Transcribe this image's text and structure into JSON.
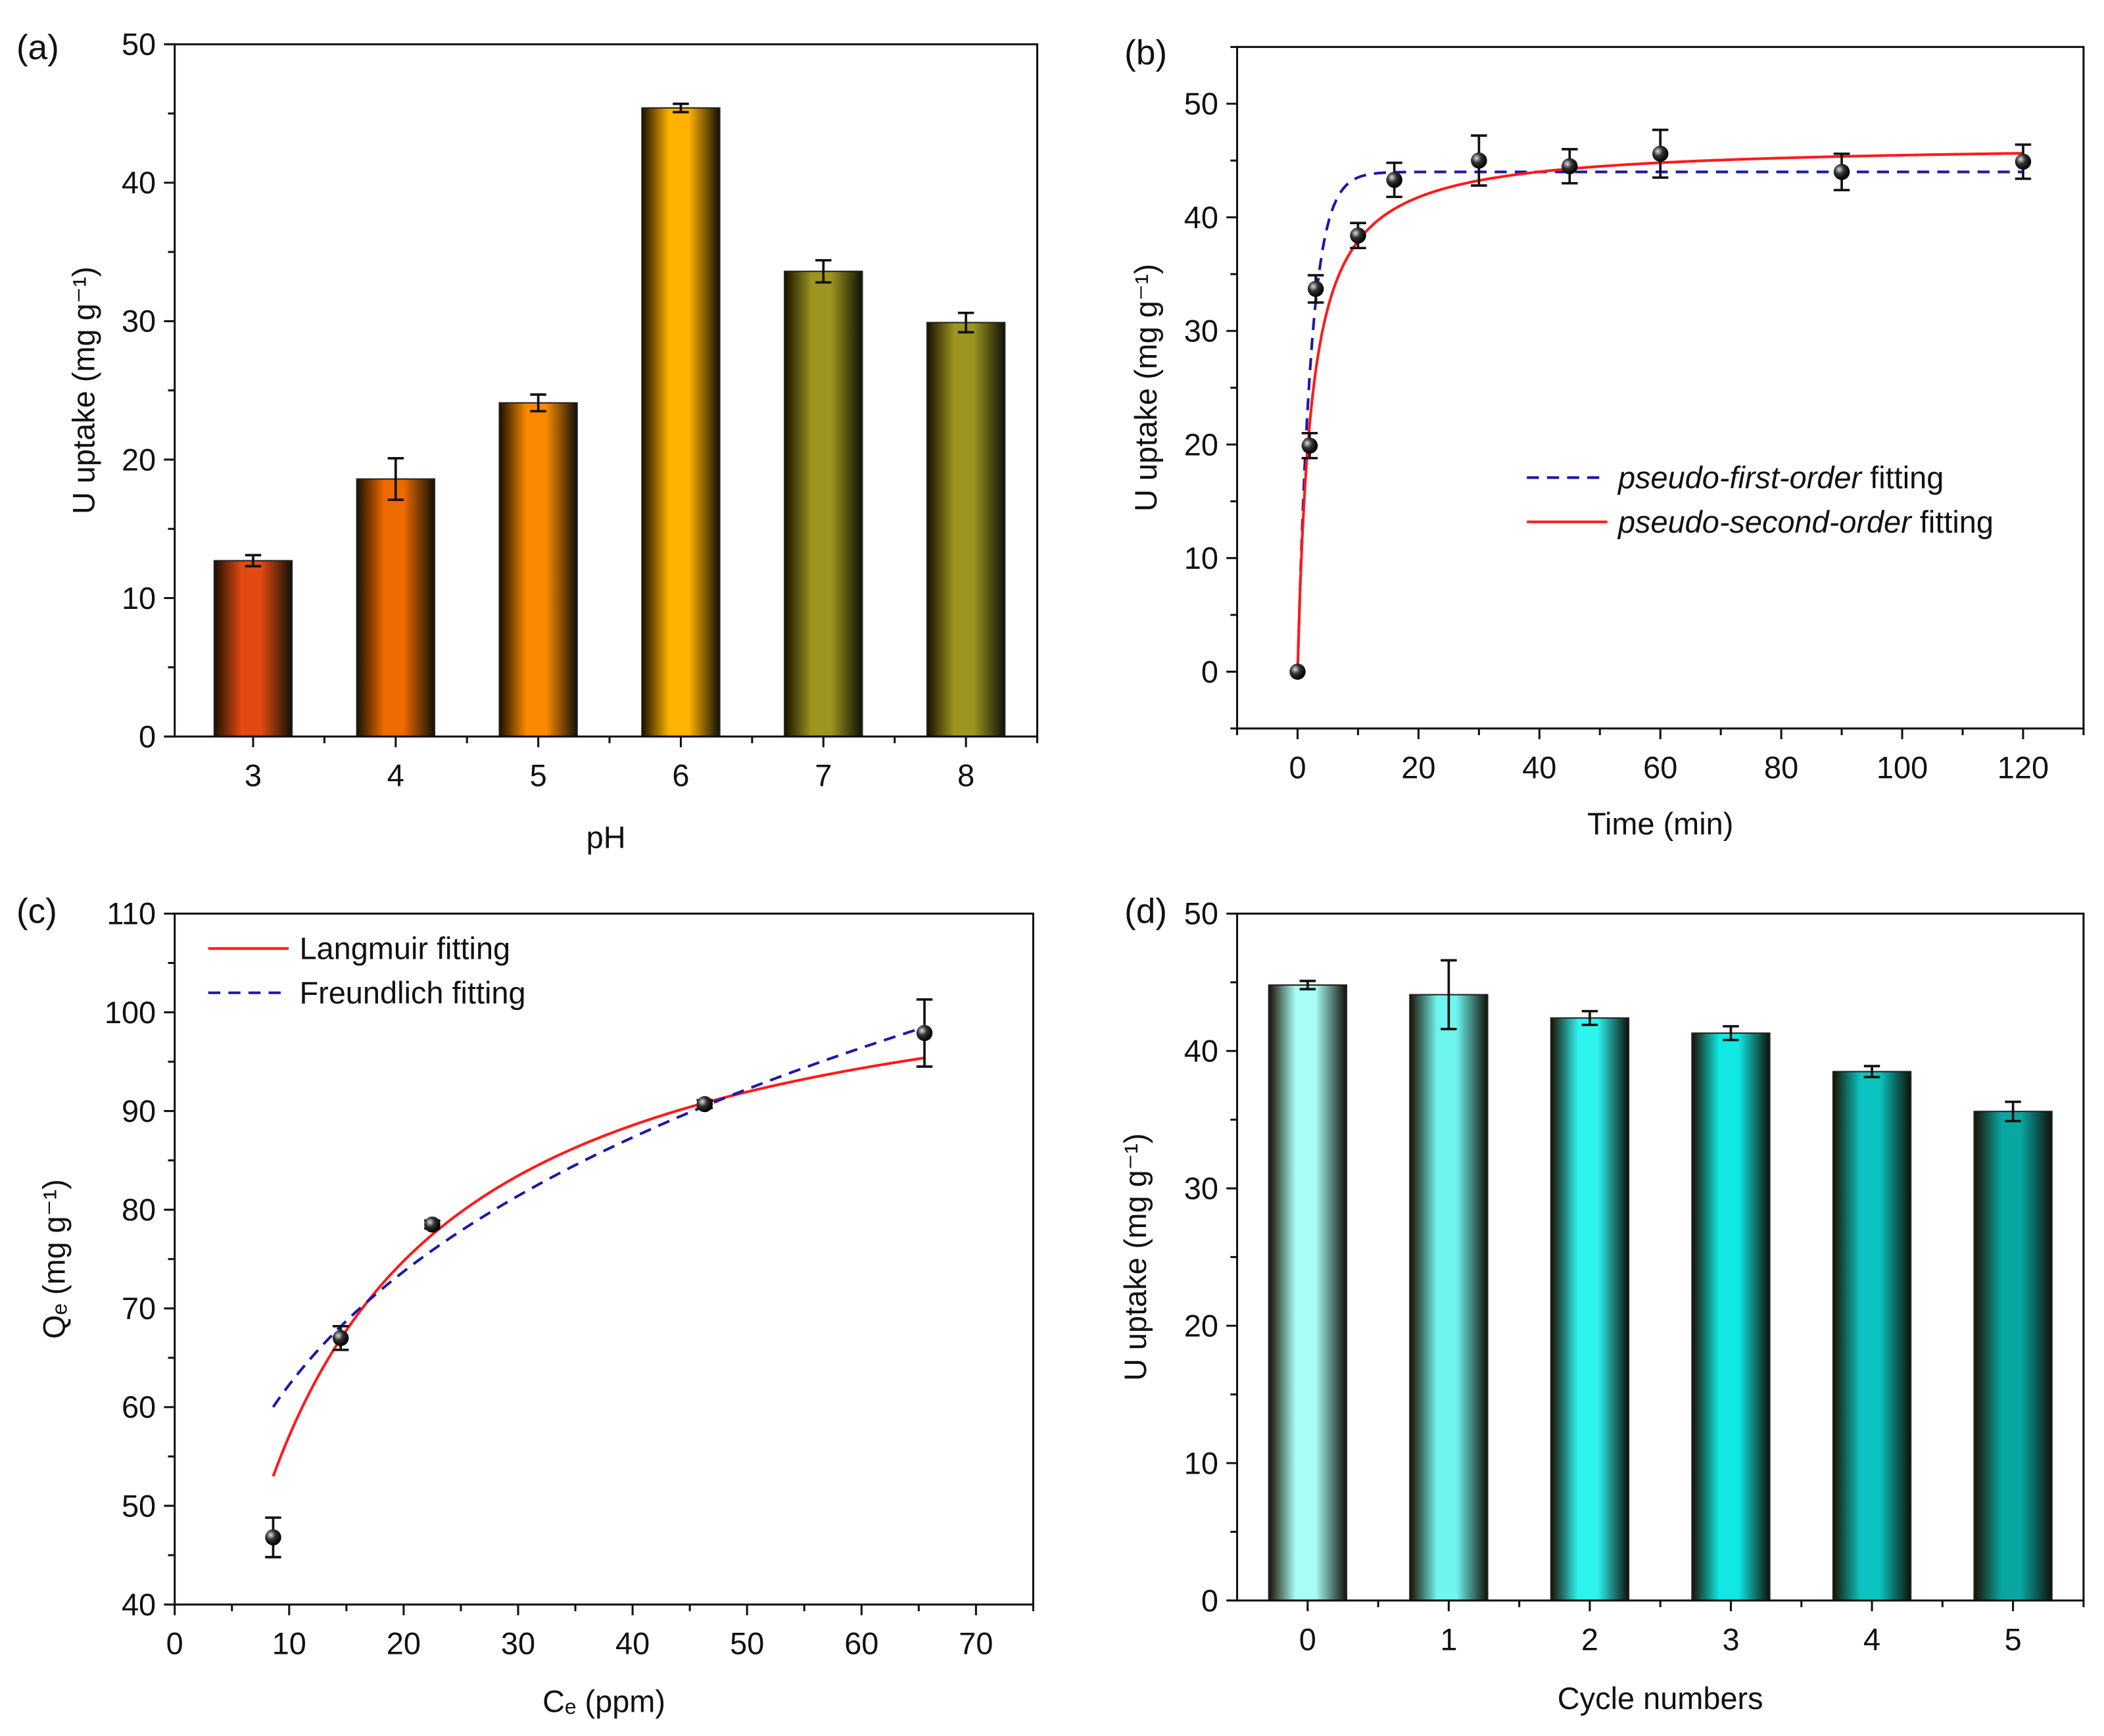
{
  "chart_data": [
    {
      "id": "a",
      "panel_label": "(a)",
      "type": "bar",
      "xlabel": "pH",
      "ylabel": "U uptake (mg g⁻¹)",
      "categories": [
        "3",
        "4",
        "5",
        "6",
        "7",
        "8"
      ],
      "x": [
        3,
        4,
        5,
        6,
        7,
        8
      ],
      "values": [
        12.7,
        18.6,
        24.1,
        45.4,
        33.6,
        29.9
      ],
      "errors": [
        0.4,
        1.5,
        0.6,
        0.3,
        0.8,
        0.7
      ],
      "colors": [
        "#e24a12",
        "#ee6a00",
        "#fb8a00",
        "#ffb300",
        "#9c9520",
        "#9c9520"
      ],
      "xlim": [
        2.45,
        8.5
      ],
      "ylim": [
        0,
        50
      ],
      "yticks": [
        0,
        10,
        20,
        30,
        40,
        50
      ],
      "yminor": 5,
      "grid": false
    },
    {
      "id": "b",
      "panel_label": "(b)",
      "type": "scatter",
      "xlabel": "Time (min)",
      "ylabel": "U uptake (mg g⁻¹)",
      "x": [
        0,
        2,
        3,
        10,
        16,
        30,
        45,
        60,
        90,
        120
      ],
      "values": [
        0,
        19.9,
        33.7,
        38.4,
        43.3,
        45.0,
        44.5,
        45.6,
        44.0,
        44.9
      ],
      "errors": [
        0,
        1.1,
        1.2,
        1.1,
        1.5,
        2.2,
        1.5,
        2.1,
        1.6,
        1.5
      ],
      "xlim": [
        -10,
        130
      ],
      "ylim": [
        -5,
        55
      ],
      "xticks": [
        0,
        20,
        40,
        60,
        80,
        100,
        120
      ],
      "yticks": [
        0,
        10,
        20,
        30,
        40,
        50
      ],
      "fits": [
        {
          "name": "pseudo-first-order fitting",
          "italic": "pseudo-first-order",
          "rest": " fitting",
          "model": "pfo",
          "qe": 44.0,
          "k": 0.45,
          "color": "#1a1aa8",
          "dash": true
        },
        {
          "name": "pseudo-second-order fitting",
          "italic": "pseudo-second-order",
          "rest": " fitting",
          "model": "pso",
          "qe": 46.5,
          "k": 0.0095,
          "color": "#ff1a1a",
          "dash": false
        }
      ],
      "legend": "center-right",
      "grid": false
    },
    {
      "id": "c",
      "panel_label": "(c)",
      "type": "scatter",
      "xlabel": "Cₑ (ppm)",
      "ylabel": "Qₑ (mg g⁻¹)",
      "x": [
        8.6,
        14.5,
        22.5,
        46.3,
        65.5
      ],
      "values": [
        46.8,
        67.0,
        78.5,
        90.7,
        97.9
      ],
      "errors": [
        2.0,
        1.2,
        0.4,
        0.4,
        3.4
      ],
      "xlim": [
        0,
        75
      ],
      "ylim": [
        40,
        110
      ],
      "xticks": [
        0,
        10,
        20,
        30,
        40,
        50,
        60,
        70
      ],
      "yticks": [
        40,
        50,
        60,
        70,
        80,
        90,
        100,
        110
      ],
      "fits": [
        {
          "name": "Langmuir fitting",
          "italic": "",
          "rest": "Langmuir fitting",
          "model": "langmuir",
          "qm": 108.5,
          "k": 0.111,
          "range": [
            8.6,
            65.5
          ],
          "color": "#ff1a1a",
          "dash": false
        },
        {
          "name": "Freundlich fitting",
          "italic": "",
          "rest": "Freundlich fitting",
          "model": "freundlich",
          "kf": 35.5,
          "n_inv": 0.244,
          "range": [
            8.6,
            65.5
          ],
          "color": "#1a1aa8",
          "dash": true
        }
      ],
      "legend": "top-left",
      "grid": false
    },
    {
      "id": "d",
      "panel_label": "(d)",
      "type": "bar",
      "xlabel": "Cycle numbers",
      "ylabel": "U uptake (mg g⁻¹)",
      "categories": [
        "0",
        "1",
        "2",
        "3",
        "4",
        "5"
      ],
      "x": [
        0,
        1,
        2,
        3,
        4,
        5
      ],
      "values": [
        44.8,
        44.1,
        42.4,
        41.3,
        38.5,
        35.6
      ],
      "errors": [
        0.3,
        2.5,
        0.5,
        0.5,
        0.4,
        0.7
      ],
      "colors": [
        "#a8fff8",
        "#6ef5ee",
        "#2ef4ee",
        "#10e8e4",
        "#0bc4c0",
        "#0aa6a2"
      ],
      "xlim": [
        -0.5,
        5.5
      ],
      "ylim": [
        0,
        50
      ],
      "yticks": [
        0,
        10,
        20,
        30,
        40,
        50
      ],
      "yminor": 5,
      "grid": false
    }
  ]
}
